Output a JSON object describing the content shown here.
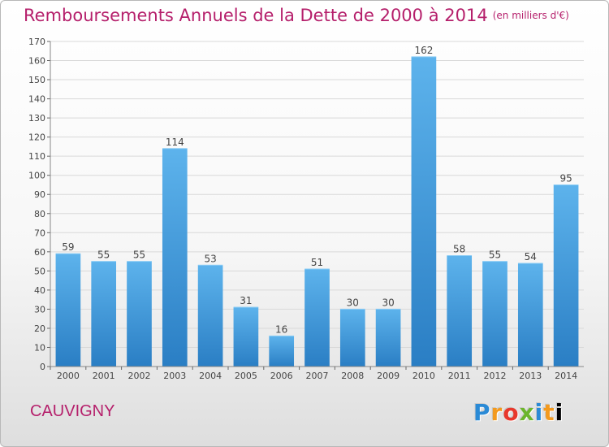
{
  "title": "Remboursements Annuels de la Dette de 2000 à 2014",
  "unit": "(en milliers d'€)",
  "commune": "CAUVIGNY",
  "logo": "Proxiti",
  "colors": {
    "title": "#b51f6b",
    "bar_top": "#5db3ec",
    "bar_bottom": "#2a7ec4",
    "grid": "#d9d9d9"
  },
  "chart_data": {
    "type": "bar",
    "title": "Remboursements Annuels de la Dette de 2000 à 2014",
    "xlabel": "",
    "ylabel": "",
    "ylim": [
      0,
      170
    ],
    "yticks": [
      0,
      10,
      20,
      30,
      40,
      50,
      60,
      70,
      80,
      90,
      100,
      110,
      120,
      130,
      140,
      150,
      160,
      170
    ],
    "grid": true,
    "categories": [
      "2000",
      "2001",
      "2002",
      "2003",
      "2004",
      "2005",
      "2006",
      "2007",
      "2008",
      "2009",
      "2010",
      "2011",
      "2012",
      "2013",
      "2014"
    ],
    "values": [
      59,
      55,
      55,
      114,
      53,
      31,
      16,
      51,
      30,
      30,
      162,
      58,
      55,
      54,
      95
    ]
  }
}
